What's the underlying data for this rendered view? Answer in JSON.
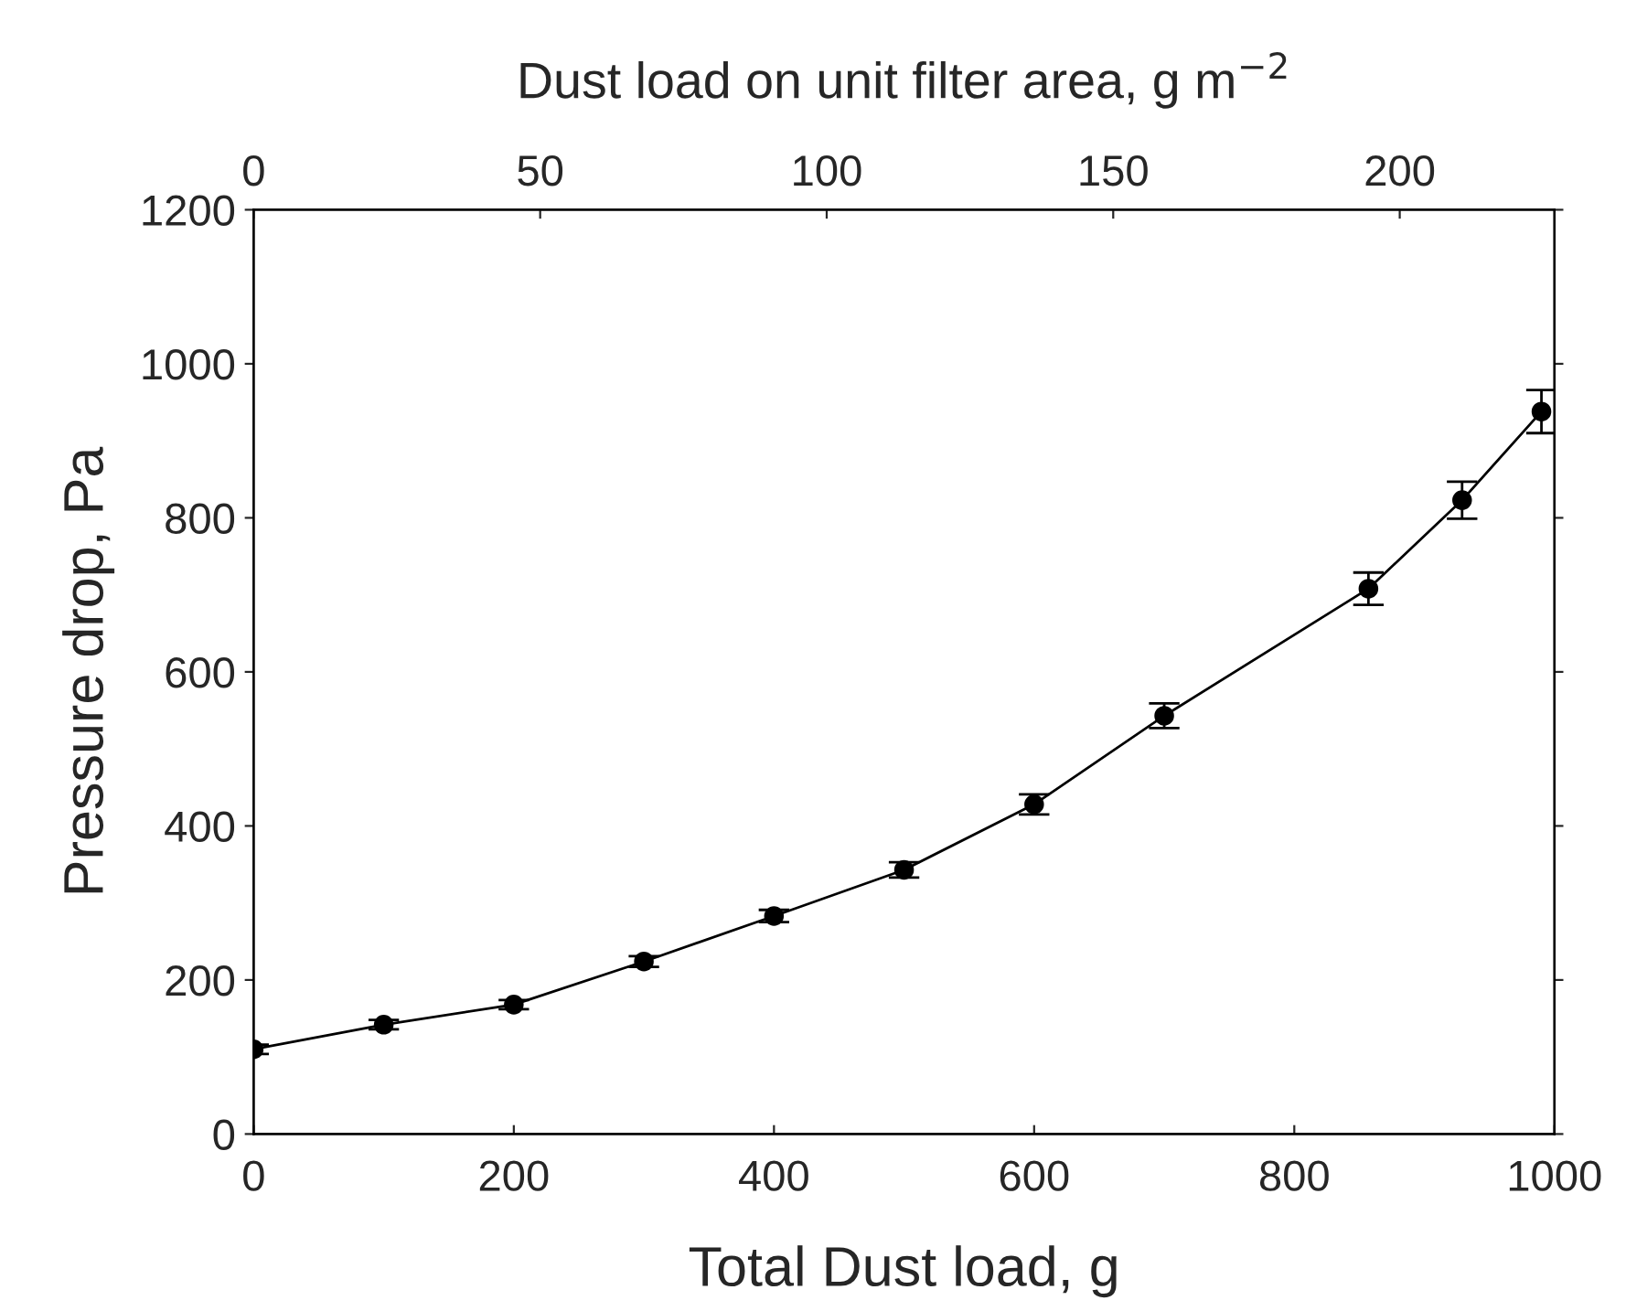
{
  "chart_data": {
    "type": "line",
    "xlabel": "Total Dust load, g",
    "ylabel": "Pressure drop, Pa",
    "x2label": "Dust load on unit filter area, g m$^{−2}$",
    "x": [
      0,
      100,
      200,
      300,
      400,
      500,
      600,
      700,
      857,
      929,
      990
    ],
    "series": [
      {
        "color": "#000000",
        "values": [
          110,
          142,
          168,
          224,
          283,
          343,
          428,
          543,
          708,
          823,
          938
        ],
        "errors": [
          6,
          6,
          6,
          7,
          8,
          10,
          13,
          16,
          21,
          24,
          28
        ]
      }
    ],
    "xlim": [
      0,
      1000
    ],
    "xticks": [
      0,
      200,
      400,
      600,
      800,
      1000
    ],
    "x2lim": [
      0,
      227
    ],
    "x2ticks": [
      0,
      50,
      100,
      150,
      200
    ],
    "ylim": [
      0,
      1200
    ],
    "yticks": [
      0,
      200,
      400,
      600,
      800,
      1000,
      1200
    ],
    "marker": "circle",
    "line_style": "solid",
    "grid": false
  }
}
